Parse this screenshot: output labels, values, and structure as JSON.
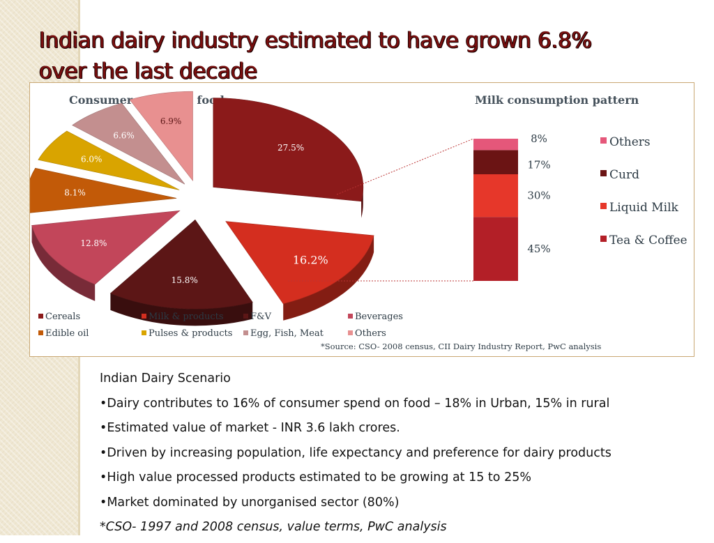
{
  "slide": {
    "title_lines": [
      "Indian dairy industry estimated to have grown 6.8%",
      "over the last decade"
    ]
  },
  "chart_data": [
    {
      "type": "pie",
      "title": "Consumer spend on food",
      "categories": [
        "Cereals",
        "Milk & products",
        "F&V",
        "Beverages",
        "Edible oil",
        "Pulses & products",
        "Egg, Fish, Meat",
        "Others"
      ],
      "values": [
        27.5,
        16.2,
        15.8,
        12.8,
        8.1,
        6.0,
        6.6,
        6.9
      ],
      "value_labels": [
        "27.5%",
        "16.2%",
        "15.8%",
        "12.8%",
        "8.1%",
        "6.0%",
        "6.6%",
        "6.9%"
      ],
      "colors": [
        "#8b1a1a",
        "#d42e1f",
        "#5c1616",
        "#c2465a",
        "#c25a08",
        "#d9a400",
        "#c38f8f",
        "#e89090"
      ],
      "exploded": "Milk & products"
    },
    {
      "type": "bar",
      "stacked": true,
      "title": "Milk consumption pattern",
      "categories": [
        "Tea & Coffee",
        "Liquid Milk",
        "Curd",
        "Others"
      ],
      "values": [
        45,
        30,
        17,
        8
      ],
      "value_labels": [
        "45%",
        "30%",
        "17%",
        "8%"
      ],
      "colors": [
        "#b31f27",
        "#e6372a",
        "#6b1414",
        "#e5577a"
      ],
      "legend_position": "right"
    }
  ],
  "chart_legend": {
    "items": [
      "Cereals",
      "Milk & products",
      "F&V",
      "Beverages",
      "Edible oil",
      "Pulses & products",
      "Egg, Fish, Meat",
      "Others"
    ]
  },
  "chart_source": "*Source: CSO- 2008 census, CII Dairy Industry Report, PwC analysis",
  "notes": {
    "heading": "Indian Dairy Scenario",
    "bullets": [
      "•Dairy contributes to 16% of consumer spend on food – 18% in Urban, 15% in rural",
      "•Estimated value of market - INR 3.6 lakh crores.",
      "•Driven by increasing population, life expectancy and preference for dairy products",
      "•High value processed products estimated to be growing at 15 to 25%",
      "•Market dominated by unorganised sector (80%)"
    ],
    "footnote": "*CSO- 1997 and 2008 census, value terms, PwC analysis"
  }
}
